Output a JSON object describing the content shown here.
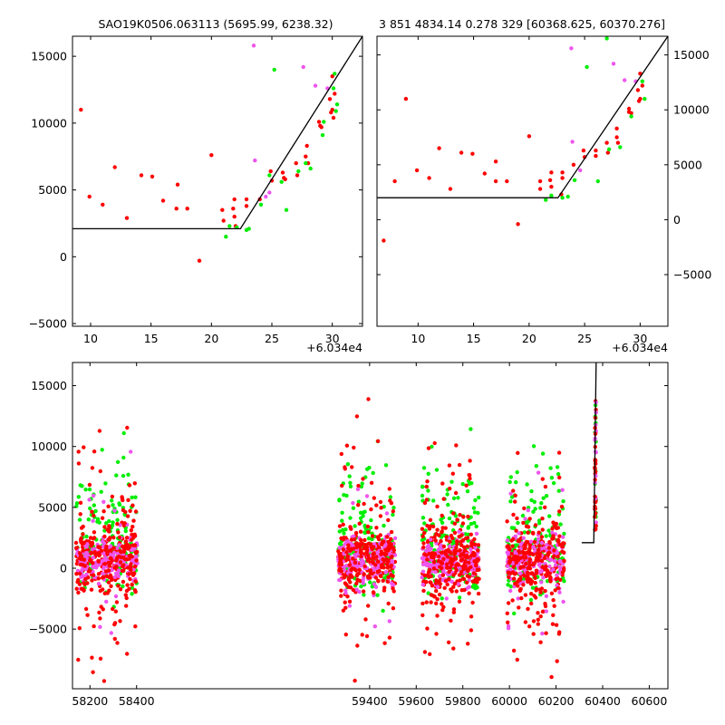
{
  "chart_data": [
    {
      "type": "scatter",
      "title": "SAO19K0506.063113 (5695.99, 6238.32)",
      "x_offset_label": "+6.034e4",
      "xlim": [
        8.5,
        32.5
      ],
      "ylim": [
        -5200,
        16500
      ],
      "xticks": [
        10,
        15,
        20,
        25,
        30
      ],
      "yticks": [
        -5000,
        0,
        5000,
        10000,
        15000
      ],
      "ytick_side": "left",
      "series": [
        {
          "color": "#ff0000",
          "points": [
            [
              9.2,
              11000
            ],
            [
              9.9,
              4500
            ],
            [
              11,
              3900
            ],
            [
              12,
              6700
            ],
            [
              13,
              2900
            ],
            [
              14.2,
              6100
            ],
            [
              15.1,
              6000
            ],
            [
              16,
              4200
            ],
            [
              17.1,
              3600
            ],
            [
              17.2,
              5400
            ],
            [
              18,
              3600
            ],
            [
              19,
              -300
            ],
            [
              20,
              7600
            ],
            [
              20.9,
              3500
            ],
            [
              21,
              2700
            ],
            [
              21.8,
              3600
            ],
            [
              21.9,
              4300
            ],
            [
              21.9,
              3000
            ],
            [
              22,
              2300
            ],
            [
              22.9,
              4300
            ],
            [
              22.9,
              3800
            ],
            [
              24,
              4300
            ],
            [
              24.9,
              6400
            ],
            [
              25,
              5700
            ],
            [
              25.9,
              6300
            ],
            [
              26,
              5900
            ],
            [
              26.1,
              5800
            ],
            [
              27,
              7000
            ],
            [
              27.1,
              6100
            ],
            [
              27.8,
              7500
            ],
            [
              27.9,
              8300
            ],
            [
              28,
              7000
            ],
            [
              28.9,
              10100
            ],
            [
              29,
              9800
            ],
            [
              29.1,
              9700
            ],
            [
              29.8,
              11800
            ],
            [
              29.9,
              10800
            ],
            [
              30,
              13500
            ],
            [
              30,
              11000
            ],
            [
              30.2,
              12200
            ],
            [
              30.1,
              10400
            ]
          ]
        },
        {
          "color": "#00ee00",
          "points": [
            [
              21.2,
              1500
            ],
            [
              21.5,
              2300
            ],
            [
              22.1,
              2200
            ],
            [
              22.9,
              2000
            ],
            [
              23.1,
              2100
            ],
            [
              24.1,
              3900
            ],
            [
              24.8,
              6100
            ],
            [
              25.2,
              14000
            ],
            [
              25.8,
              5600
            ],
            [
              26.2,
              3500
            ],
            [
              27.2,
              6400
            ],
            [
              27.8,
              7000
            ],
            [
              28.2,
              6600
            ],
            [
              29.2,
              9100
            ],
            [
              29.3,
              10100
            ],
            [
              30.1,
              12600
            ],
            [
              30.3,
              10900
            ],
            [
              30.4,
              11400
            ],
            [
              30.2,
              13700
            ]
          ]
        },
        {
          "color": "#ee55ee",
          "points": [
            [
              23.5,
              15800
            ],
            [
              23.6,
              7200
            ],
            [
              24.5,
              4500
            ],
            [
              24.8,
              4800
            ],
            [
              27.6,
              14200
            ],
            [
              28.6,
              12800
            ],
            [
              29.6,
              12600
            ]
          ]
        }
      ],
      "model": [
        [
          8.5,
          2100
        ],
        [
          22.4,
          2100
        ],
        [
          32.5,
          16500
        ]
      ]
    },
    {
      "type": "scatter",
      "title": "3 851 4834.14 0.278 329 [60368.625, 60370.276]",
      "x_offset_label": "+6.034e4",
      "xlim": [
        6.3,
        32.5
      ],
      "ylim": [
        -9700,
        16700
      ],
      "xticks": [
        10,
        15,
        20,
        25,
        30
      ],
      "yticks": [
        -5000,
        0,
        5000,
        10000,
        15000
      ],
      "ytick_side": "right",
      "series": [
        {
          "color": "#ff0000",
          "points": [
            [
              6.9,
              -1900
            ],
            [
              7.9,
              3500
            ],
            [
              8.9,
              11000
            ],
            [
              9.9,
              4500
            ],
            [
              11,
              3800
            ],
            [
              11.9,
              6500
            ],
            [
              12.9,
              2800
            ],
            [
              13.9,
              6100
            ],
            [
              14.9,
              6000
            ],
            [
              16,
              4200
            ],
            [
              17,
              3500
            ],
            [
              17,
              5300
            ],
            [
              18,
              3500
            ],
            [
              19,
              -400
            ],
            [
              20,
              7600
            ],
            [
              21,
              3500
            ],
            [
              21,
              2800
            ],
            [
              21.9,
              3600
            ],
            [
              22,
              4300
            ],
            [
              22,
              3000
            ],
            [
              22.9,
              2300
            ],
            [
              23,
              4300
            ],
            [
              23,
              3800
            ],
            [
              24,
              5000
            ],
            [
              24.9,
              6300
            ],
            [
              25,
              5700
            ],
            [
              26,
              6300
            ],
            [
              26,
              5800
            ],
            [
              27,
              7000
            ],
            [
              27.1,
              6100
            ],
            [
              27.9,
              7500
            ],
            [
              27.9,
              8300
            ],
            [
              28,
              7000
            ],
            [
              29,
              10100
            ],
            [
              29,
              9800
            ],
            [
              29.2,
              9700
            ],
            [
              29.8,
              11800
            ],
            [
              29.9,
              10800
            ],
            [
              30,
              13300
            ],
            [
              30,
              11000
            ],
            [
              30.2,
              12200
            ]
          ]
        },
        {
          "color": "#00ee00",
          "points": [
            [
              21.5,
              1800
            ],
            [
              22,
              2200
            ],
            [
              23,
              2000
            ],
            [
              23.5,
              2100
            ],
            [
              24.1,
              3600
            ],
            [
              25.2,
              13900
            ],
            [
              26.2,
              3500
            ],
            [
              27,
              16500
            ],
            [
              27.2,
              6400
            ],
            [
              28.2,
              6600
            ],
            [
              29.2,
              9400
            ],
            [
              30.2,
              12600
            ],
            [
              30.4,
              11000
            ]
          ]
        },
        {
          "color": "#ee55ee",
          "points": [
            [
              23.8,
              15600
            ],
            [
              23.9,
              7100
            ],
            [
              24.6,
              4500
            ],
            [
              27.6,
              14200
            ],
            [
              28.6,
              12700
            ],
            [
              29.6,
              12600
            ]
          ]
        }
      ],
      "model": [
        [
          6.3,
          2000
        ],
        [
          22.6,
          2000
        ],
        [
          32.5,
          16700
        ]
      ]
    },
    {
      "type": "scatter",
      "title": "",
      "xlim": [
        58125,
        60680
      ],
      "ylim": [
        -9900,
        16900
      ],
      "xticks": [
        58200,
        58400,
        59400,
        59600,
        59800,
        60000,
        60200,
        60400,
        60600
      ],
      "yticks": [
        -5000,
        0,
        5000,
        10000,
        15000
      ],
      "ytick_side": "left",
      "observing_seasons": [
        [
          58140,
          58405
        ],
        [
          59265,
          59510
        ],
        [
          59625,
          59870
        ],
        [
          59990,
          60235
        ],
        [
          60355,
          60372
        ]
      ],
      "series": [
        {
          "name": "red",
          "color": "#ff0000"
        },
        {
          "name": "green",
          "color": "#00ee00"
        },
        {
          "name": "magenta",
          "color": "#ee55ee"
        }
      ],
      "model": [
        [
          60310,
          2100
        ],
        [
          60362,
          2100
        ],
        [
          60372,
          16900
        ]
      ]
    }
  ]
}
